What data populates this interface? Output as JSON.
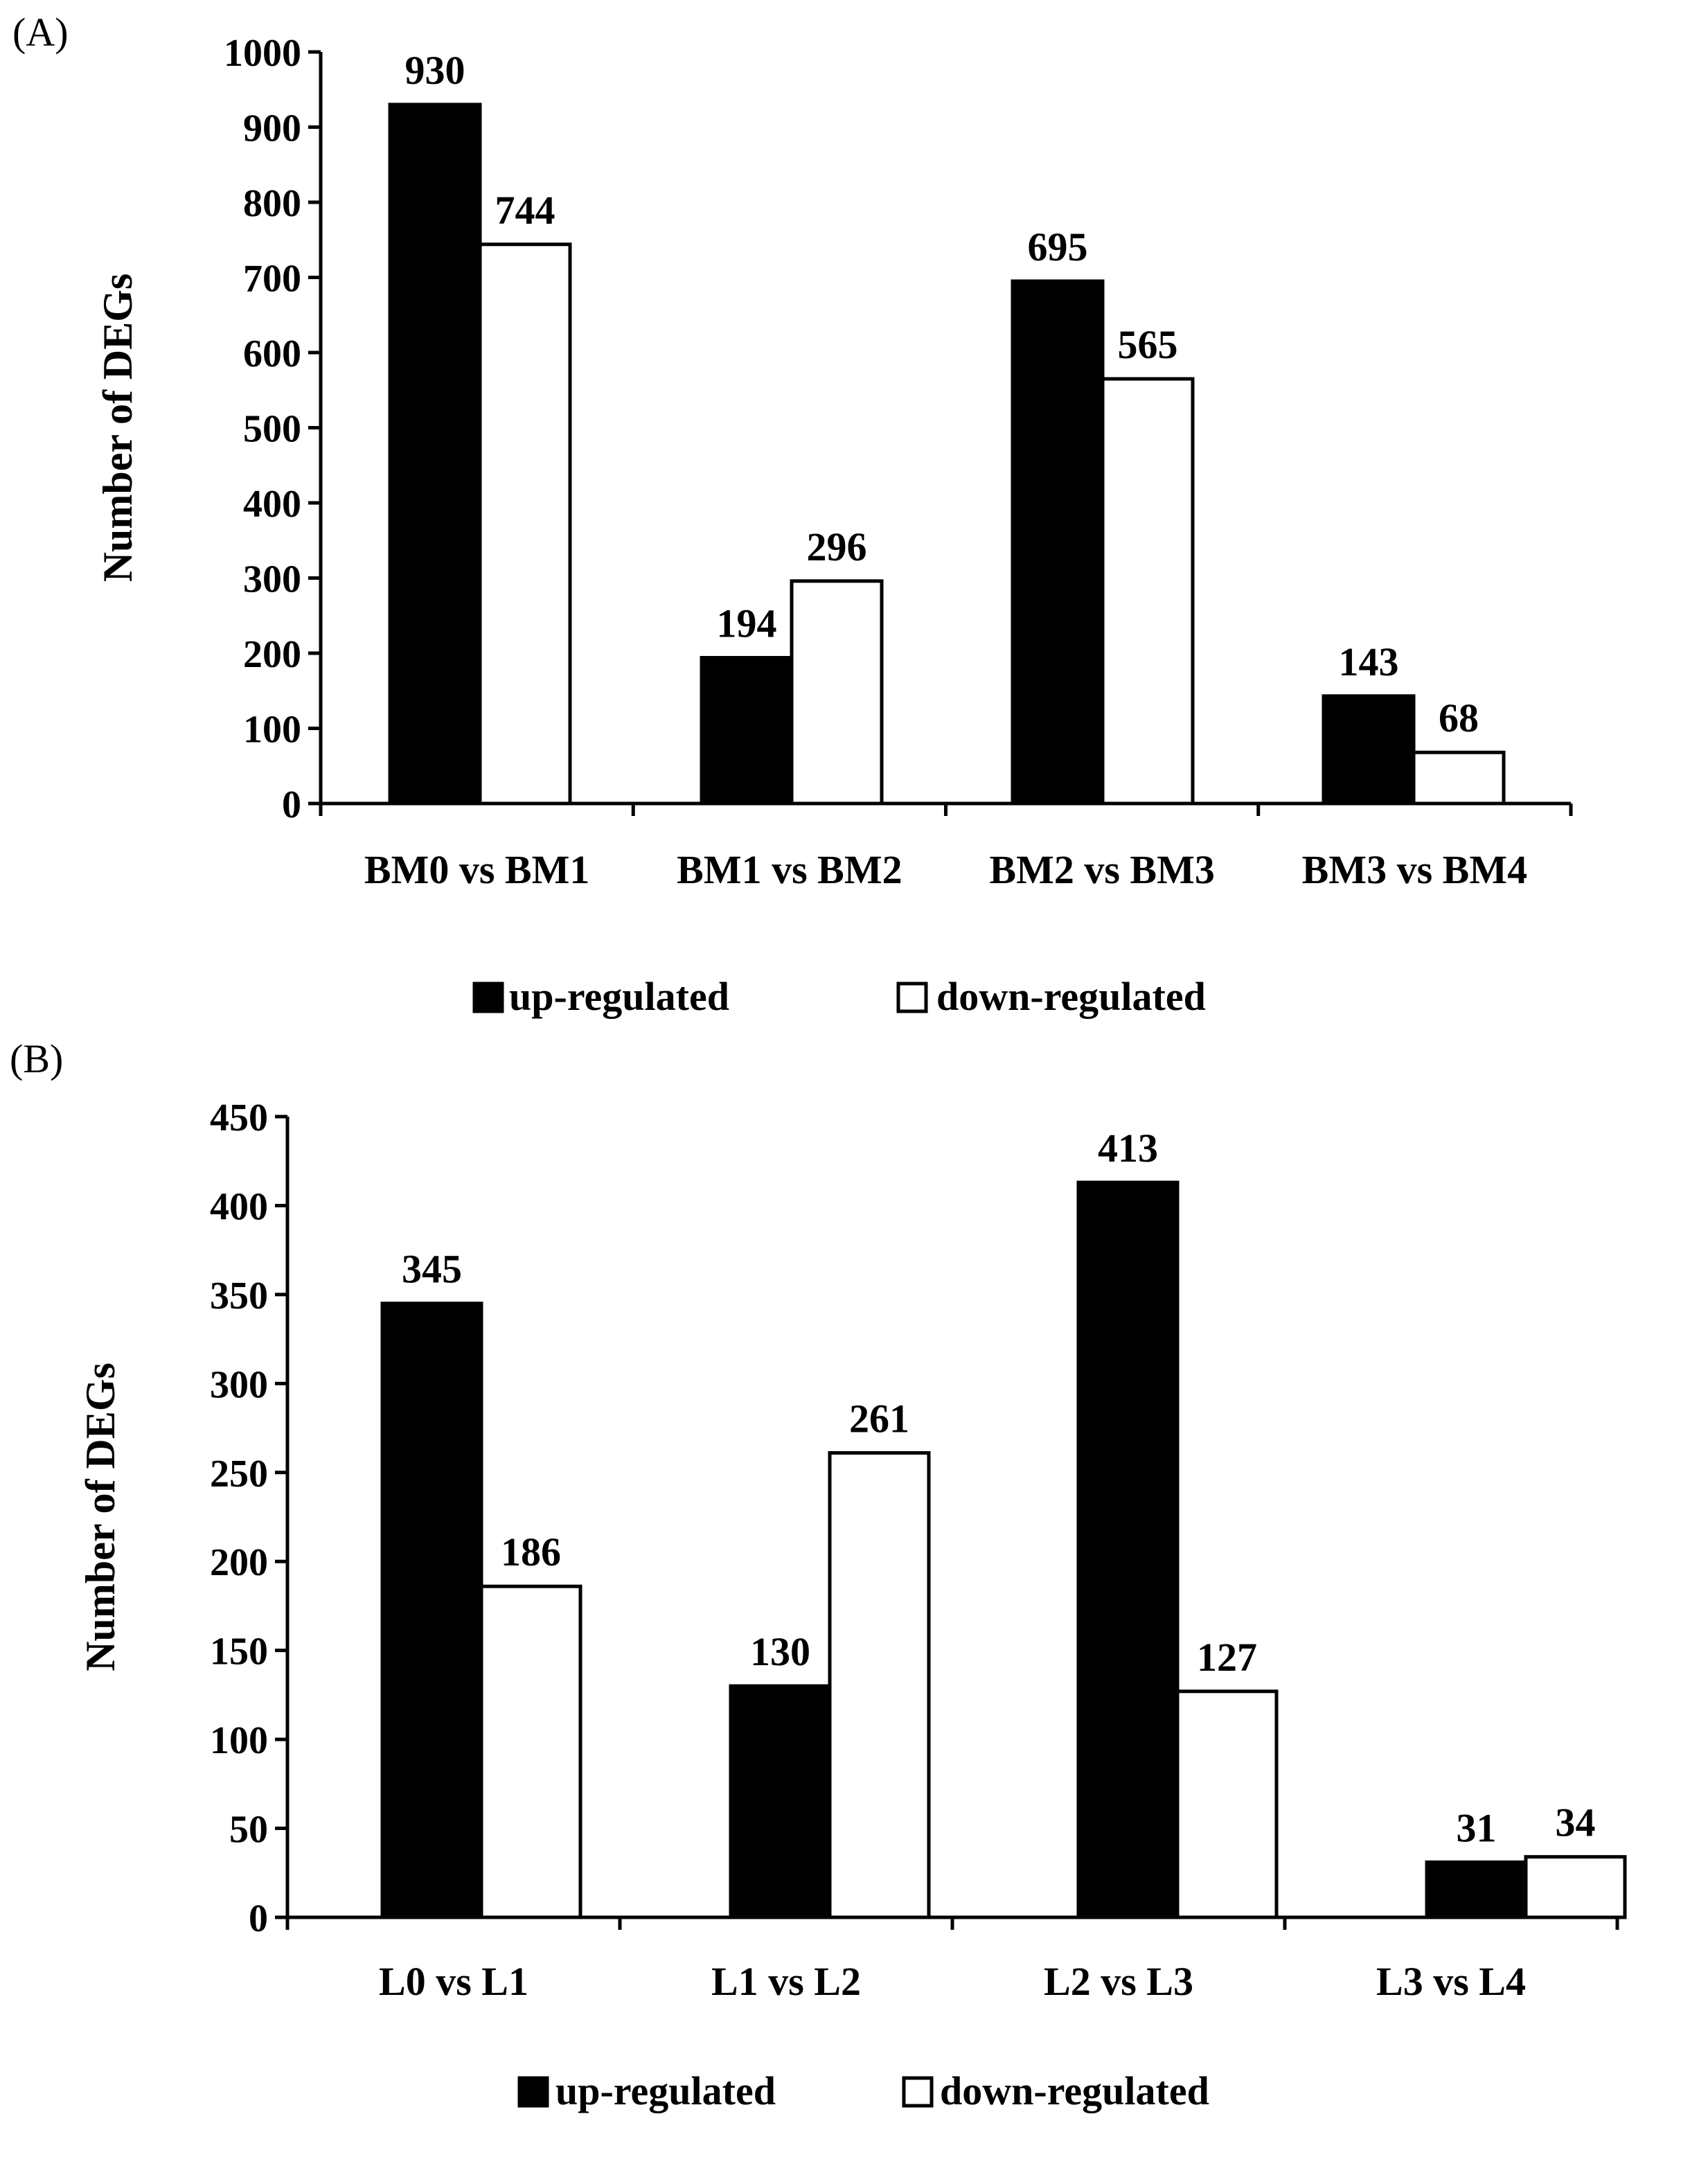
{
  "chart_data": [
    {
      "panel_label": "(A)",
      "type": "bar",
      "ylabel": "Number of DEGs",
      "ylim": [
        0,
        1000
      ],
      "yticks": [
        0,
        100,
        200,
        300,
        400,
        500,
        600,
        700,
        800,
        900,
        1000
      ],
      "categories": [
        "BM0 vs BM1",
        "BM1 vs BM2",
        "BM2 vs BM3",
        "BM3 vs BM4"
      ],
      "series": [
        {
          "name": "up-regulated",
          "fill": "#000000",
          "values": [
            930,
            194,
            695,
            143
          ]
        },
        {
          "name": "down-regulated",
          "fill": "#ffffff",
          "values": [
            744,
            296,
            565,
            68
          ]
        }
      ],
      "legend": [
        "up-regulated",
        "down-regulated"
      ]
    },
    {
      "panel_label": "(B)",
      "type": "bar",
      "ylabel": "Number of DEGs",
      "ylim": [
        0,
        450
      ],
      "yticks": [
        0,
        50,
        100,
        150,
        200,
        250,
        300,
        350,
        400,
        450
      ],
      "categories": [
        "L0 vs L1",
        "L1 vs L2",
        "L2 vs L3",
        "L3 vs L4"
      ],
      "series": [
        {
          "name": "up-regulated",
          "fill": "#000000",
          "values": [
            345,
            130,
            413,
            31
          ]
        },
        {
          "name": "down-regulated",
          "fill": "#ffffff",
          "values": [
            186,
            261,
            127,
            34
          ]
        }
      ],
      "legend": [
        "up-regulated",
        "down-regulated"
      ]
    }
  ]
}
